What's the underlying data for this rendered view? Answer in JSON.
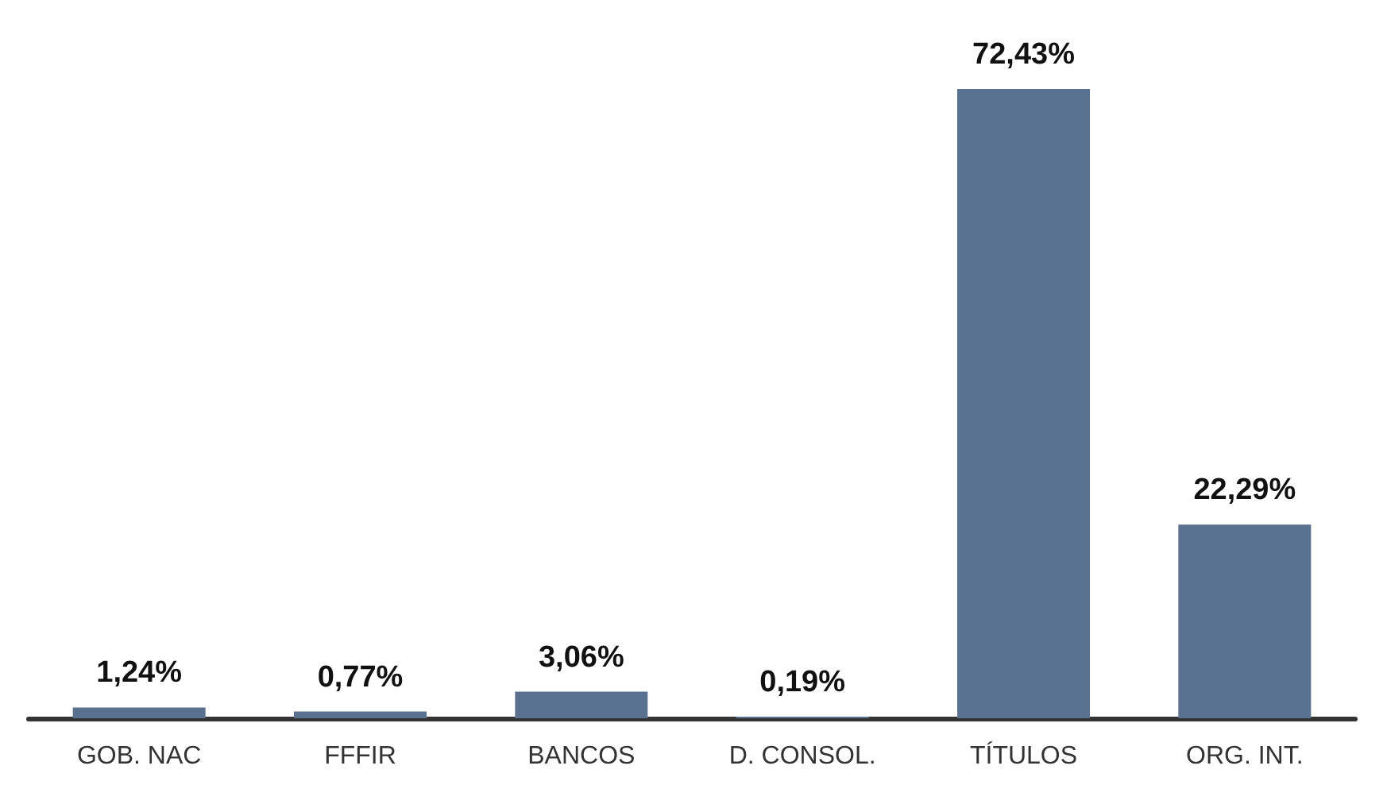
{
  "chart_data": {
    "type": "bar",
    "categories": [
      "GOB. NAC",
      "FFFIR",
      "BANCOS",
      "D. CONSOL.",
      "TÍTULOS",
      "ORG. INT."
    ],
    "values": [
      1.24,
      0.77,
      3.06,
      0.19,
      72.43,
      22.29
    ],
    "value_labels": [
      "1,24%",
      "0,77%",
      "3,06%",
      "0,19%",
      "72,43%",
      "22,29%"
    ],
    "color": "#5b7190"
  }
}
